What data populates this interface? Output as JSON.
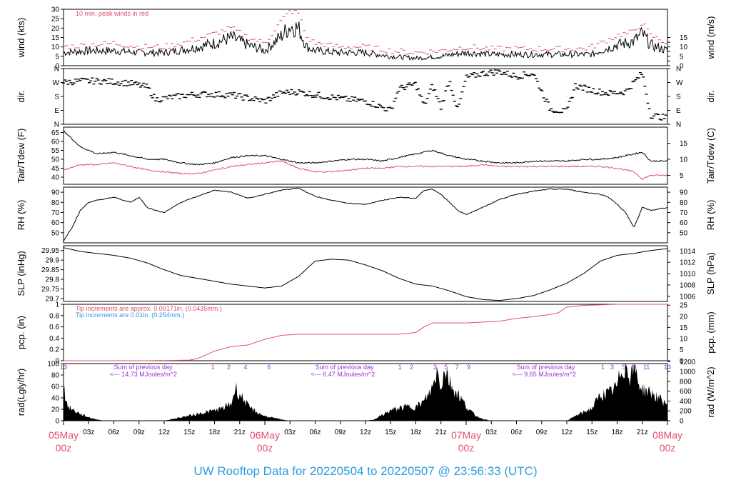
{
  "title": "UW Rooftop Data for 20220504  to  20220507 @ 23:56:33  (UTC)",
  "colors": {
    "line": "#000000",
    "peak_wind": "#e0506a",
    "dewpoint": "#e0506a",
    "precip": "#e0506a",
    "precip_note_2": "#2a9de0",
    "radiation_annotations": "#9b30d9",
    "date_labels": "#e0506a",
    "title": "#2a9de0"
  },
  "x_axis": {
    "unit": "hours since 05May 00z",
    "range": [
      0,
      72
    ],
    "tick_labels": [
      {
        "hour": 3,
        "label": "03z"
      },
      {
        "hour": 6,
        "label": "06z"
      },
      {
        "hour": 9,
        "label": "09z"
      },
      {
        "hour": 12,
        "label": "12z"
      },
      {
        "hour": 15,
        "label": "15z"
      },
      {
        "hour": 18,
        "label": "18z"
      },
      {
        "hour": 21,
        "label": "21z"
      },
      {
        "hour": 27,
        "label": "03z"
      },
      {
        "hour": 30,
        "label": "06z"
      },
      {
        "hour": 33,
        "label": "09z"
      },
      {
        "hour": 36,
        "label": "12z"
      },
      {
        "hour": 39,
        "label": "15z"
      },
      {
        "hour": 42,
        "label": "18z"
      },
      {
        "hour": 45,
        "label": "21z"
      },
      {
        "hour": 51,
        "label": "03z"
      },
      {
        "hour": 54,
        "label": "06z"
      },
      {
        "hour": 57,
        "label": "09z"
      },
      {
        "hour": 60,
        "label": "12z"
      },
      {
        "hour": 63,
        "label": "15z"
      },
      {
        "hour": 66,
        "label": "18z"
      },
      {
        "hour": 69,
        "label": "21z"
      }
    ],
    "date_labels": [
      {
        "hour": 0,
        "line1": "05May",
        "line2": "00z"
      },
      {
        "hour": 24,
        "line1": "06May",
        "line2": "00z"
      },
      {
        "hour": 48,
        "line1": "07May",
        "line2": "00z"
      },
      {
        "hour": 72,
        "line1": "08May",
        "line2": "00z"
      }
    ]
  },
  "chart_data": [
    {
      "type": "line",
      "name": "wind",
      "ylabel_left": "wind (kts)",
      "ylabel_right": "wind (m/s)",
      "ylim": [
        0,
        30
      ],
      "yticks_left": [
        0,
        5,
        10,
        15,
        20,
        25,
        30
      ],
      "right_axis": {
        "ticks": [
          0,
          2.5,
          5,
          7.5,
          10,
          12.5,
          15
        ],
        "labels": [
          "0",
          "",
          "5",
          "",
          "10",
          "",
          "15"
        ]
      },
      "annotation": "10 min. peak winds in red",
      "x": [
        0,
        3,
        6,
        9,
        12,
        15,
        18,
        20,
        22,
        24,
        26,
        27,
        28,
        29,
        30,
        33,
        36,
        39,
        42,
        45,
        48,
        51,
        54,
        57,
        60,
        62,
        63,
        64,
        66,
        68,
        69,
        70,
        72
      ],
      "series": [
        {
          "name": "wind",
          "values": [
            7,
            8,
            8,
            7,
            7,
            9,
            12,
            15,
            11,
            8,
            16,
            21,
            20,
            10,
            8,
            7,
            7,
            5,
            4,
            5,
            7,
            6,
            6,
            6,
            6,
            6,
            6,
            8,
            11,
            13,
            17,
            11,
            8
          ]
        },
        {
          "name": "peak",
          "values": [
            10,
            11,
            12,
            10,
            10,
            13,
            17,
            20,
            15,
            12,
            24,
            29,
            28,
            15,
            12,
            10,
            10,
            8,
            7,
            8,
            10,
            9,
            9,
            9,
            9,
            9,
            10,
            12,
            16,
            18,
            23,
            16,
            12
          ]
        }
      ]
    },
    {
      "type": "scatter",
      "name": "direction",
      "ylabel_left": "dir.",
      "ylabel_right": "dir.",
      "ylim": [
        0,
        360
      ],
      "yticks_left": [
        0,
        90,
        180,
        270,
        360
      ],
      "ytick_labels": [
        "N",
        "E",
        "S",
        "W",
        "N"
      ],
      "points": [
        [
          0,
          270
        ],
        [
          2,
          280
        ],
        [
          4,
          280
        ],
        [
          6,
          275
        ],
        [
          8,
          265
        ],
        [
          10,
          240
        ],
        [
          11,
          160
        ],
        [
          13,
          175
        ],
        [
          15,
          190
        ],
        [
          17,
          195
        ],
        [
          20,
          190
        ],
        [
          22,
          170
        ],
        [
          24,
          150
        ],
        [
          26,
          205
        ],
        [
          28,
          210
        ],
        [
          30,
          190
        ],
        [
          32,
          175
        ],
        [
          34,
          160
        ],
        [
          36,
          150
        ],
        [
          37,
          130
        ],
        [
          38,
          110
        ],
        [
          39,
          90
        ],
        [
          40,
          230
        ],
        [
          42,
          260
        ],
        [
          43,
          120
        ],
        [
          44,
          250
        ],
        [
          45,
          110
        ],
        [
          46,
          285
        ],
        [
          47,
          90
        ],
        [
          48,
          300
        ],
        [
          50,
          330
        ],
        [
          52,
          340
        ],
        [
          54,
          310
        ],
        [
          56,
          330
        ],
        [
          58,
          100
        ],
        [
          60,
          80
        ],
        [
          61,
          250
        ],
        [
          63,
          220
        ],
        [
          65,
          200
        ],
        [
          67,
          210
        ],
        [
          69,
          330
        ],
        [
          70,
          60
        ],
        [
          72,
          40
        ]
      ]
    },
    {
      "type": "line",
      "name": "temperature",
      "ylabel_left": "Tair/Tdew (F)",
      "ylabel_right": "Tair/Tdew (C)",
      "ylim": [
        36,
        68
      ],
      "yticks_left": [
        40,
        45,
        50,
        55,
        60,
        65
      ],
      "right_axis": {
        "ticks": [
          41,
          50,
          59
        ],
        "labels": [
          "5",
          "10",
          "15"
        ]
      },
      "x": [
        0,
        2,
        4,
        6,
        8,
        10,
        12,
        14,
        16,
        18,
        20,
        22,
        24,
        26,
        28,
        30,
        32,
        34,
        36,
        38,
        40,
        42,
        44,
        46,
        48,
        50,
        52,
        54,
        56,
        58,
        60,
        62,
        64,
        66,
        68,
        69,
        70,
        72
      ],
      "series": [
        {
          "name": "Tair",
          "values": [
            66,
            57,
            53,
            54,
            52,
            50,
            50,
            48,
            47,
            48,
            51,
            52,
            52,
            50,
            48,
            48,
            49,
            50,
            50,
            49,
            51,
            53,
            55,
            52,
            50,
            49,
            48,
            48,
            49,
            49,
            49,
            50,
            50,
            51,
            53,
            54,
            49,
            49
          ]
        },
        {
          "name": "Tdew",
          "values": [
            44,
            47,
            47,
            48,
            46,
            44,
            43,
            42,
            42,
            44,
            46,
            47,
            48,
            49,
            45,
            43,
            43,
            44,
            45,
            45,
            46,
            46,
            46,
            46,
            46,
            47,
            46,
            46,
            46,
            46,
            46,
            46,
            46,
            45,
            43,
            39,
            41,
            41
          ]
        }
      ]
    },
    {
      "type": "line",
      "name": "relative-humidity",
      "ylabel_left": "RH (%)",
      "ylabel_right": "RH (%)",
      "ylim": [
        40,
        95
      ],
      "yticks_left": [
        50,
        60,
        70,
        80,
        90
      ],
      "right_axis": {
        "ticks": [
          50,
          60,
          70,
          80,
          90
        ],
        "labels": [
          "50",
          "60",
          "70",
          "80",
          "90"
        ]
      },
      "x": [
        0,
        1,
        2,
        3,
        4,
        6,
        8,
        9,
        10,
        11,
        12,
        14,
        16,
        18,
        20,
        22,
        24,
        26,
        28,
        30,
        32,
        34,
        36,
        38,
        40,
        42,
        43,
        44,
        45,
        46,
        47,
        48,
        50,
        52,
        54,
        56,
        58,
        60,
        62,
        64,
        65,
        66,
        67,
        68,
        69,
        70,
        72
      ],
      "series": [
        {
          "name": "RH",
          "values": [
            42,
            55,
            72,
            80,
            82,
            85,
            80,
            85,
            75,
            72,
            70,
            80,
            86,
            92,
            90,
            84,
            88,
            92,
            94,
            86,
            82,
            79,
            78,
            82,
            85,
            84,
            92,
            93,
            88,
            80,
            72,
            68,
            75,
            83,
            88,
            91,
            93,
            93,
            90,
            88,
            85,
            78,
            70,
            55,
            75,
            72,
            75
          ]
        }
      ]
    },
    {
      "type": "line",
      "name": "sea-level-pressure",
      "ylabel_left": "SLP (inHg)",
      "ylabel_right": "SLP (hPa)",
      "ylim": [
        29.685,
        29.975
      ],
      "yticks_left": [
        29.7,
        29.75,
        29.8,
        29.85,
        29.9,
        29.95
      ],
      "right_axis": {
        "ticks": [
          29.7115,
          29.7706,
          29.8296,
          29.8887,
          29.9478
        ],
        "labels": [
          "1006",
          "1008",
          "1010",
          "1012",
          "1014"
        ]
      },
      "x": [
        0,
        2,
        4,
        6,
        8,
        10,
        12,
        14,
        16,
        18,
        20,
        22,
        24,
        26,
        28,
        30,
        32,
        34,
        36,
        38,
        40,
        42,
        44,
        46,
        48,
        50,
        52,
        54,
        56,
        58,
        60,
        62,
        64,
        66,
        68,
        70,
        72
      ],
      "series": [
        {
          "name": "SLP",
          "values": [
            29.965,
            29.945,
            29.935,
            29.925,
            29.91,
            29.885,
            29.85,
            29.82,
            29.805,
            29.79,
            29.775,
            29.765,
            29.755,
            29.765,
            29.815,
            29.895,
            29.905,
            29.9,
            29.875,
            29.845,
            29.805,
            29.775,
            29.765,
            29.74,
            29.71,
            29.695,
            29.69,
            29.7,
            29.715,
            29.745,
            29.78,
            29.83,
            29.895,
            29.925,
            29.935,
            29.95,
            29.96
          ]
        }
      ]
    },
    {
      "type": "line",
      "name": "precipitation",
      "ylabel_left": "pcp. (in)",
      "ylabel_right": "pcp. (mm)",
      "ylim": [
        0,
        1
      ],
      "yticks_left": [
        0,
        0.2,
        0.4,
        0.6,
        0.8,
        1.0
      ],
      "right_axis": {
        "ticks": [
          0,
          0.1969,
          0.3937,
          0.5906,
          0.7874,
          0.9843
        ],
        "labels": [
          "0",
          "5",
          "10",
          "15",
          "20",
          "25"
        ]
      },
      "annotations": [
        "Tip increments are approx. 0.00171in. (0.0435mm.)",
        "Tip increments are 0.01in. (0.254mm.)"
      ],
      "x": [
        0,
        10,
        15,
        16,
        18,
        20,
        22,
        24,
        26,
        28,
        36,
        40,
        42,
        43,
        44,
        46,
        48,
        52,
        54,
        56,
        58,
        59,
        60,
        62,
        64,
        66,
        68,
        72
      ],
      "series": [
        {
          "name": "pcp",
          "values": [
            0,
            0,
            0.01,
            0.04,
            0.17,
            0.25,
            0.28,
            0.38,
            0.45,
            0.47,
            0.47,
            0.47,
            0.5,
            0.6,
            0.67,
            0.67,
            0.67,
            0.7,
            0.75,
            0.78,
            0.82,
            0.85,
            0.95,
            0.98,
            0.99,
            1.0,
            1.0,
            1.0
          ]
        }
      ]
    },
    {
      "type": "area",
      "name": "radiation",
      "ylabel_left": "rad(Lgly/hr)",
      "ylabel_right": "rad (W/m^2)",
      "ylim": [
        0,
        100
      ],
      "yticks_left": [
        0,
        20,
        40,
        60,
        80,
        100
      ],
      "right_axis": {
        "ticks": [
          0,
          17.2,
          34.4,
          51.6,
          68.8,
          86,
          103.2
        ],
        "labels": [
          "0",
          "200",
          "400",
          "600",
          "800",
          "1000",
          "1200"
        ]
      },
      "daily_totals": [
        {
          "hour": 6,
          "line1": "Sum of previous day",
          "line2": "<--- 14.73 MJoules/m^2"
        },
        {
          "hour": 30,
          "line1": "Sum of previous day",
          "line2": "<--- 6.47 MJoules/m^2"
        },
        {
          "hour": 54,
          "line1": "Sum of previous day",
          "line2": "<--- 9.65 MJoules/m^2"
        }
      ],
      "sun_markers": [
        {
          "hour": 0,
          "label": "13"
        },
        {
          "hour": 17.8,
          "label": "1"
        },
        {
          "hour": 19.7,
          "label": "2"
        },
        {
          "hour": 21.7,
          "label": "4"
        },
        {
          "hour": 24.5,
          "label": "6"
        },
        {
          "hour": 40.1,
          "label": "1"
        },
        {
          "hour": 41.5,
          "label": "2"
        },
        {
          "hour": 44.3,
          "label": "3"
        },
        {
          "hour": 45.6,
          "label": "5"
        },
        {
          "hour": 46.9,
          "label": "7"
        },
        {
          "hour": 48.3,
          "label": "9"
        },
        {
          "hour": 64.3,
          "label": "1"
        },
        {
          "hour": 65.4,
          "label": "3"
        },
        {
          "hour": 66.8,
          "label": "5"
        },
        {
          "hour": 68.1,
          "label": "9"
        },
        {
          "hour": 69.5,
          "label": "11"
        },
        {
          "hour": 72,
          "label": "13"
        }
      ],
      "x": [
        0,
        0.5,
        1,
        2,
        3,
        4,
        5,
        12,
        13,
        14,
        15,
        16,
        17,
        18,
        19,
        20,
        20.5,
        21,
        21.5,
        22,
        23,
        24,
        25,
        26,
        27,
        36,
        37,
        38,
        39,
        40,
        41,
        42,
        43,
        44,
        44.5,
        45,
        45.5,
        46,
        46.5,
        47,
        48,
        49,
        50,
        51,
        60,
        61,
        62,
        63,
        64,
        65,
        66,
        66.5,
        67,
        67.5,
        68,
        68.5,
        69,
        70,
        71,
        72
      ],
      "series": [
        {
          "name": "rad",
          "values": [
            60,
            25,
            20,
            12,
            6,
            2,
            0,
            0,
            3,
            6,
            9,
            12,
            15,
            18,
            22,
            30,
            58,
            45,
            38,
            25,
            15,
            8,
            5,
            2,
            0,
            0,
            2,
            10,
            18,
            22,
            25,
            24,
            34,
            58,
            88,
            62,
            92,
            70,
            55,
            48,
            25,
            10,
            3,
            0,
            0,
            8,
            15,
            22,
            45,
            48,
            60,
            90,
            95,
            80,
            98,
            70,
            55,
            50,
            38,
            30
          ]
        }
      ]
    }
  ]
}
